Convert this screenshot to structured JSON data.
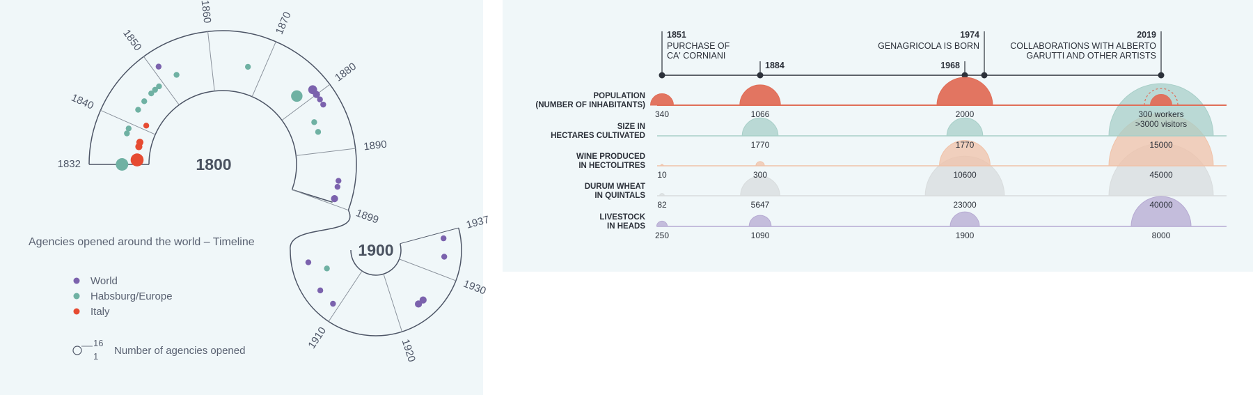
{
  "left_chart": {
    "title": "Agencies opened around the world – Timeline",
    "center_labels": [
      "1800",
      "1900"
    ],
    "tick_labels": [
      "1832",
      "1840",
      "1850",
      "1860",
      "1870",
      "1880",
      "1890",
      "1899",
      "1910",
      "1920",
      "1930",
      "1937"
    ],
    "legend": [
      {
        "label": "World",
        "color": "#7b62ad"
      },
      {
        "label": "Habsburg/Europe",
        "color": "#6fb1a3"
      },
      {
        "label": "Italy",
        "color": "#e64b32"
      }
    ],
    "size_legend": {
      "max": "16",
      "min": "1",
      "label": "Number of agencies opened"
    }
  },
  "right_chart": {
    "events": [
      {
        "year": "1851",
        "lines": [
          "PURCHASE OF",
          "CA' CORNIANI"
        ]
      },
      {
        "year": "1884",
        "lines": []
      },
      {
        "year": "1968",
        "lines": []
      },
      {
        "year": "1974",
        "lines": [
          "GENAGRICOLA IS BORN"
        ]
      },
      {
        "year": "2019",
        "lines": [
          "COLLABORATIONS WITH ALBERTO",
          "GARUTTI AND OTHER ARTISTS"
        ]
      }
    ],
    "annotation": [
      "300 workers",
      ">3000 visitors"
    ]
  },
  "chart_data": [
    {
      "type": "scatter",
      "title": "Agencies opened around the world – Timeline",
      "x_range": [
        1832,
        1937
      ],
      "series": [
        {
          "name": "World",
          "color": "#7b62ad"
        },
        {
          "name": "Habsburg/Europe",
          "color": "#6fb1a3"
        },
        {
          "name": "Italy",
          "color": "#e64b32"
        }
      ],
      "points": [
        {
          "year": 1832,
          "series": "Habsburg/Europe",
          "n": 10
        },
        {
          "year": 1833,
          "series": "Italy",
          "n": 11
        },
        {
          "year": 1836,
          "series": "Italy",
          "n": 2
        },
        {
          "year": 1837,
          "series": "Italy",
          "n": 2
        },
        {
          "year": 1838,
          "series": "Habsburg/Europe",
          "n": 1
        },
        {
          "year": 1839,
          "series": "Habsburg/Europe",
          "n": 1
        },
        {
          "year": 1841,
          "series": "Italy",
          "n": 1
        },
        {
          "year": 1843,
          "series": "Habsburg/Europe",
          "n": 1
        },
        {
          "year": 1845,
          "series": "Habsburg/Europe",
          "n": 1
        },
        {
          "year": 1847,
          "series": "Habsburg/Europe",
          "n": 1
        },
        {
          "year": 1848,
          "series": "Habsburg/Europe",
          "n": 1
        },
        {
          "year": 1849,
          "series": "Habsburg/Europe",
          "n": 1
        },
        {
          "year": 1851,
          "series": "World",
          "n": 1
        },
        {
          "year": 1853,
          "series": "Habsburg/Europe",
          "n": 1
        },
        {
          "year": 1867,
          "series": "Habsburg/Europe",
          "n": 1
        },
        {
          "year": 1878,
          "series": "Habsburg/Europe",
          "n": 8
        },
        {
          "year": 1879,
          "series": "World",
          "n": 4
        },
        {
          "year": 1880,
          "series": "World",
          "n": 2
        },
        {
          "year": 1881,
          "series": "World",
          "n": 1
        },
        {
          "year": 1882,
          "series": "World",
          "n": 1
        },
        {
          "year": 1884,
          "series": "Habsburg/Europe",
          "n": 1
        },
        {
          "year": 1886,
          "series": "Habsburg/Europe",
          "n": 1
        },
        {
          "year": 1895,
          "series": "World",
          "n": 1
        },
        {
          "year": 1896,
          "series": "World",
          "n": 1
        },
        {
          "year": 1898,
          "series": "World",
          "n": 2
        },
        {
          "year": 1901,
          "series": "World",
          "n": 1
        },
        {
          "year": 1903,
          "series": "Habsburg/Europe",
          "n": 1
        },
        {
          "year": 1906,
          "series": "World",
          "n": 1
        },
        {
          "year": 1909,
          "series": "World",
          "n": 1
        },
        {
          "year": 1924,
          "series": "World",
          "n": 2
        },
        {
          "year": 1925,
          "series": "World",
          "n": 2
        },
        {
          "year": 1933,
          "series": "World",
          "n": 1
        },
        {
          "year": 1936,
          "series": "World",
          "n": 1
        }
      ]
    },
    {
      "type": "bubble",
      "x": [
        1851,
        1884,
        1968,
        2019
      ],
      "rows": [
        {
          "label": [
            "POPULATION",
            "(NUMBER OF INHABITANTS)"
          ],
          "color": "#e06e58",
          "values": [
            340,
            1066,
            2000,
            300
          ]
        },
        {
          "label": [
            "SIZE IN",
            "HECTARES CULTIVATED"
          ],
          "color": "#a8cfc8",
          "values": [
            null,
            1770,
            1770,
            15000
          ]
        },
        {
          "label": [
            "WINE PRODUCED",
            "IN HECTOLITRES"
          ],
          "color": "#f0c2a8",
          "values": [
            10,
            300,
            10600,
            45000
          ]
        },
        {
          "label": [
            "DURUM WHEAT",
            "IN QUINTALS"
          ],
          "color": "#d8dcdd",
          "values": [
            82,
            5647,
            23000,
            40000
          ]
        },
        {
          "label": [
            "LIVESTOCK",
            "IN HEADS"
          ],
          "color": "#b6aad2",
          "values": [
            250,
            1090,
            1900,
            8000
          ]
        }
      ]
    }
  ]
}
